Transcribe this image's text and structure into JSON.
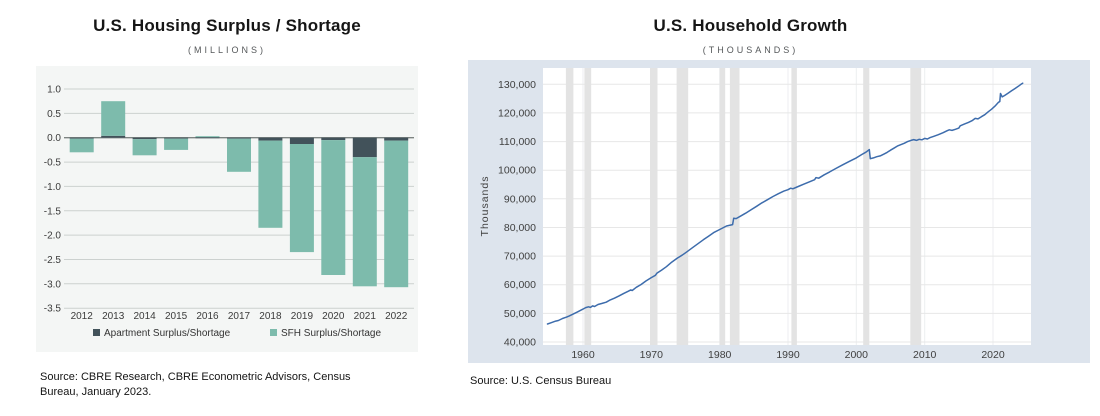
{
  "left_chart": {
    "title": "U.S. Housing Surplus / Shortage",
    "subtitle": "(MILLIONS)",
    "source_lines": [
      "Source: CBRE Research, CBRE Econometric Advisors, Census",
      "Bureau, January 2023."
    ]
  },
  "right_chart": {
    "title": "U.S. Household Growth",
    "subtitle": "(THOUSANDS)",
    "source": "Source: U.S. Census Bureau"
  },
  "colors": {
    "apartment": "#42525a",
    "sfh": "#7dbbac",
    "line_blue": "#3d6cac",
    "left_panel_bg": "#f4f6f5",
    "right_panel_bg": "#dde4ed",
    "recession_band": "#e3e3e3"
  },
  "chart_data": [
    {
      "type": "bar",
      "title": "U.S. Housing Surplus / Shortage",
      "subtitle": "(MILLIONS)",
      "stacked": true,
      "categories": [
        "2012",
        "2013",
        "2014",
        "2015",
        "2016",
        "2017",
        "2018",
        "2019",
        "2020",
        "2021",
        "2022"
      ],
      "series": [
        {
          "name": "Apartment Surplus/Shortage",
          "color": "#42525a",
          "values": [
            -0.02,
            0.04,
            -0.03,
            -0.02,
            0.01,
            -0.02,
            -0.06,
            -0.13,
            -0.05,
            -0.4,
            -0.06
          ]
        },
        {
          "name": "SFH Surplus/Shortage",
          "color": "#7dbbac",
          "values": [
            -0.28,
            0.71,
            -0.33,
            -0.23,
            0.02,
            -0.68,
            -1.79,
            -2.22,
            -2.77,
            -2.65,
            -3.01
          ]
        }
      ],
      "ylim": [
        -3.5,
        1.0
      ],
      "ytick_values": [
        1.0,
        0.5,
        0.0,
        -0.5,
        -1.0,
        -1.5,
        -2.0,
        -2.5,
        -3.0,
        -3.5
      ],
      "ytick_labels": [
        "1.0",
        "0.5",
        "0.0",
        "-0.5",
        "-1.0",
        "-1.5",
        "-2.0",
        "-2.5",
        "-3.0",
        "-3.5"
      ],
      "grid": true,
      "legend_position": "bottom"
    },
    {
      "type": "line",
      "title": "U.S. Household Growth",
      "subtitle": "(THOUSANDS)",
      "ylabel": "Thousands",
      "line_color": "#3d6cac",
      "xlim": [
        1954.15,
        2025.6
      ],
      "ylim": [
        38950,
        135700
      ],
      "xtick_values": [
        1960,
        1970,
        1980,
        1990,
        2000,
        2010,
        2020
      ],
      "xtick_labels": [
        "1960",
        "1970",
        "1980",
        "1990",
        "2000",
        "2010",
        "2020"
      ],
      "ytick_values": [
        130000,
        120000,
        110000,
        100000,
        90000,
        80000,
        70000,
        60000,
        50000,
        40000
      ],
      "ytick_labels": [
        "130,000",
        "120,000",
        "110,000",
        "100,000",
        "90,000",
        "80,000",
        "70,000",
        "60,000",
        "50,000",
        "40,000"
      ],
      "grid": true,
      "recession_bands": [
        [
          1957.5,
          1958.6
        ],
        [
          1960.2,
          1961.2
        ],
        [
          1969.8,
          1970.9
        ],
        [
          1973.7,
          1975.4
        ],
        [
          1980.0,
          1980.8
        ],
        [
          1981.5,
          1982.9
        ],
        [
          1990.5,
          1991.3
        ],
        [
          2001.0,
          2001.9
        ],
        [
          2007.9,
          2009.5
        ]
      ],
      "points": [
        [
          1954.8,
          46300
        ],
        [
          1955.3,
          46700
        ],
        [
          1956.0,
          47300
        ],
        [
          1956.4,
          47500
        ],
        [
          1957.0,
          48200
        ],
        [
          1957.6,
          48700
        ],
        [
          1958.0,
          49100
        ],
        [
          1958.6,
          49800
        ],
        [
          1959.2,
          50500
        ],
        [
          1960.0,
          51500
        ],
        [
          1960.4,
          52000
        ],
        [
          1960.8,
          52300
        ],
        [
          1961.1,
          52100
        ],
        [
          1961.4,
          52600
        ],
        [
          1961.7,
          52400
        ],
        [
          1962.2,
          53100
        ],
        [
          1962.8,
          53500
        ],
        [
          1963.4,
          53900
        ],
        [
          1964.0,
          54700
        ],
        [
          1964.6,
          55300
        ],
        [
          1965.2,
          56000
        ],
        [
          1966.0,
          57000
        ],
        [
          1966.6,
          57700
        ],
        [
          1967.0,
          58200
        ],
        [
          1967.2,
          58000
        ],
        [
          1967.8,
          59100
        ],
        [
          1968.5,
          60100
        ],
        [
          1969.2,
          61300
        ],
        [
          1970.0,
          62500
        ],
        [
          1970.6,
          63300
        ],
        [
          1970.8,
          64000
        ],
        [
          1971.5,
          65100
        ],
        [
          1972.2,
          66300
        ],
        [
          1973.0,
          67900
        ],
        [
          1973.8,
          69300
        ],
        [
          1974.5,
          70300
        ],
        [
          1975.2,
          71500
        ],
        [
          1976.0,
          72900
        ],
        [
          1976.8,
          74300
        ],
        [
          1977.6,
          75700
        ],
        [
          1978.4,
          77000
        ],
        [
          1979.2,
          78300
        ],
        [
          1980.0,
          79300
        ],
        [
          1981.0,
          80500
        ],
        [
          1981.9,
          81000
        ],
        [
          1982.05,
          83200
        ],
        [
          1982.4,
          83100
        ],
        [
          1983.0,
          83900
        ],
        [
          1983.8,
          85000
        ],
        [
          1984.6,
          86200
        ],
        [
          1985.4,
          87400
        ],
        [
          1986.2,
          88600
        ],
        [
          1987.0,
          89700
        ],
        [
          1987.8,
          90800
        ],
        [
          1988.6,
          91800
        ],
        [
          1989.4,
          92700
        ],
        [
          1990.0,
          93200
        ],
        [
          1990.4,
          93700
        ],
        [
          1990.7,
          93500
        ],
        [
          1991.5,
          94300
        ],
        [
          1992.3,
          95100
        ],
        [
          1993.1,
          95900
        ],
        [
          1993.9,
          96700
        ],
        [
          1994.1,
          97400
        ],
        [
          1994.5,
          97200
        ],
        [
          1995.3,
          98400
        ],
        [
          1996.1,
          99400
        ],
        [
          1997.0,
          100600
        ],
        [
          1998.0,
          101900
        ],
        [
          1999.0,
          103100
        ],
        [
          2000.0,
          104300
        ],
        [
          2000.8,
          105500
        ],
        [
          2001.4,
          106300
        ],
        [
          2001.9,
          107200
        ],
        [
          2002.05,
          104000
        ],
        [
          2002.5,
          104300
        ],
        [
          2003.0,
          104700
        ],
        [
          2003.5,
          105000
        ],
        [
          2004.0,
          105600
        ],
        [
          2004.5,
          106200
        ],
        [
          2005.0,
          107000
        ],
        [
          2005.5,
          107700
        ],
        [
          2006.0,
          108400
        ],
        [
          2006.5,
          108900
        ],
        [
          2007.0,
          109400
        ],
        [
          2007.5,
          110000
        ],
        [
          2008.0,
          110400
        ],
        [
          2008.4,
          110700
        ],
        [
          2008.8,
          110400
        ],
        [
          2009.2,
          110800
        ],
        [
          2009.6,
          110600
        ],
        [
          2010.0,
          111100
        ],
        [
          2010.4,
          110900
        ],
        [
          2010.8,
          111400
        ],
        [
          2011.3,
          111800
        ],
        [
          2012.0,
          112400
        ],
        [
          2012.7,
          113100
        ],
        [
          2013.3,
          113800
        ],
        [
          2013.6,
          114100
        ],
        [
          2014.0,
          113900
        ],
        [
          2014.5,
          114300
        ],
        [
          2015.0,
          114700
        ],
        [
          2015.2,
          115500
        ],
        [
          2015.8,
          116100
        ],
        [
          2016.4,
          116700
        ],
        [
          2017.0,
          117400
        ],
        [
          2017.4,
          118100
        ],
        [
          2017.8,
          117900
        ],
        [
          2018.3,
          118700
        ],
        [
          2018.8,
          119400
        ],
        [
          2019.3,
          120400
        ],
        [
          2019.8,
          121300
        ],
        [
          2020.3,
          122400
        ],
        [
          2020.8,
          123700
        ],
        [
          2021.0,
          124000
        ],
        [
          2021.1,
          126800
        ],
        [
          2021.35,
          125600
        ],
        [
          2021.7,
          126100
        ],
        [
          2022.2,
          126900
        ],
        [
          2022.7,
          127700
        ],
        [
          2023.2,
          128500
        ],
        [
          2023.7,
          129300
        ],
        [
          2024.1,
          130000
        ],
        [
          2024.35,
          130400
        ]
      ]
    }
  ]
}
